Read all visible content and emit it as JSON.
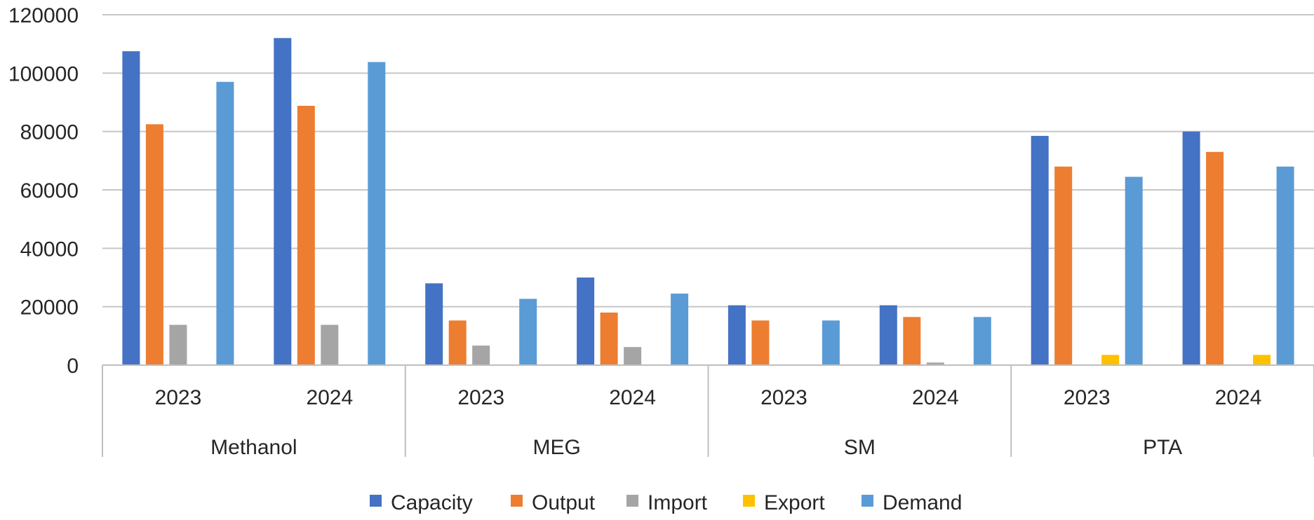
{
  "chart_data": {
    "type": "bar",
    "groups": [
      {
        "label": "Methanol",
        "years": [
          "2023",
          "2024"
        ]
      },
      {
        "label": "MEG",
        "years": [
          "2023",
          "2024"
        ]
      },
      {
        "label": "SM",
        "years": [
          "2023",
          "2024"
        ]
      },
      {
        "label": "PTA",
        "years": [
          "2023",
          "2024"
        ]
      }
    ],
    "categories": [
      "Methanol 2023",
      "Methanol 2024",
      "MEG 2023",
      "MEG 2024",
      "SM 2023",
      "SM 2024",
      "PTA 2023",
      "PTA 2024"
    ],
    "series": [
      {
        "name": "Capacity",
        "color": "#4472C4",
        "values": [
          107500,
          112000,
          28000,
          30000,
          20500,
          20500,
          78500,
          80000
        ]
      },
      {
        "name": "Output",
        "color": "#ED7D31",
        "values": [
          82500,
          88800,
          15300,
          18000,
          15300,
          16500,
          68000,
          73000
        ]
      },
      {
        "name": "Import",
        "color": "#A5A5A5",
        "values": [
          13800,
          13800,
          6700,
          6200,
          0,
          900,
          0,
          0
        ]
      },
      {
        "name": "Export",
        "color": "#FFC000",
        "values": [
          0,
          0,
          0,
          0,
          0,
          0,
          3500,
          3500
        ]
      },
      {
        "name": "Demand",
        "color": "#5B9BD5",
        "values": [
          97000,
          103800,
          22700,
          24500,
          15300,
          16500,
          64500,
          68000
        ]
      }
    ],
    "yticks": [
      "0",
      "20000",
      "40000",
      "60000",
      "80000",
      "100000",
      "120000"
    ],
    "ylim": [
      0,
      120000
    ],
    "grid": true,
    "legend_position": "bottom-center",
    "title": "",
    "xlabel": "",
    "ylabel": ""
  }
}
